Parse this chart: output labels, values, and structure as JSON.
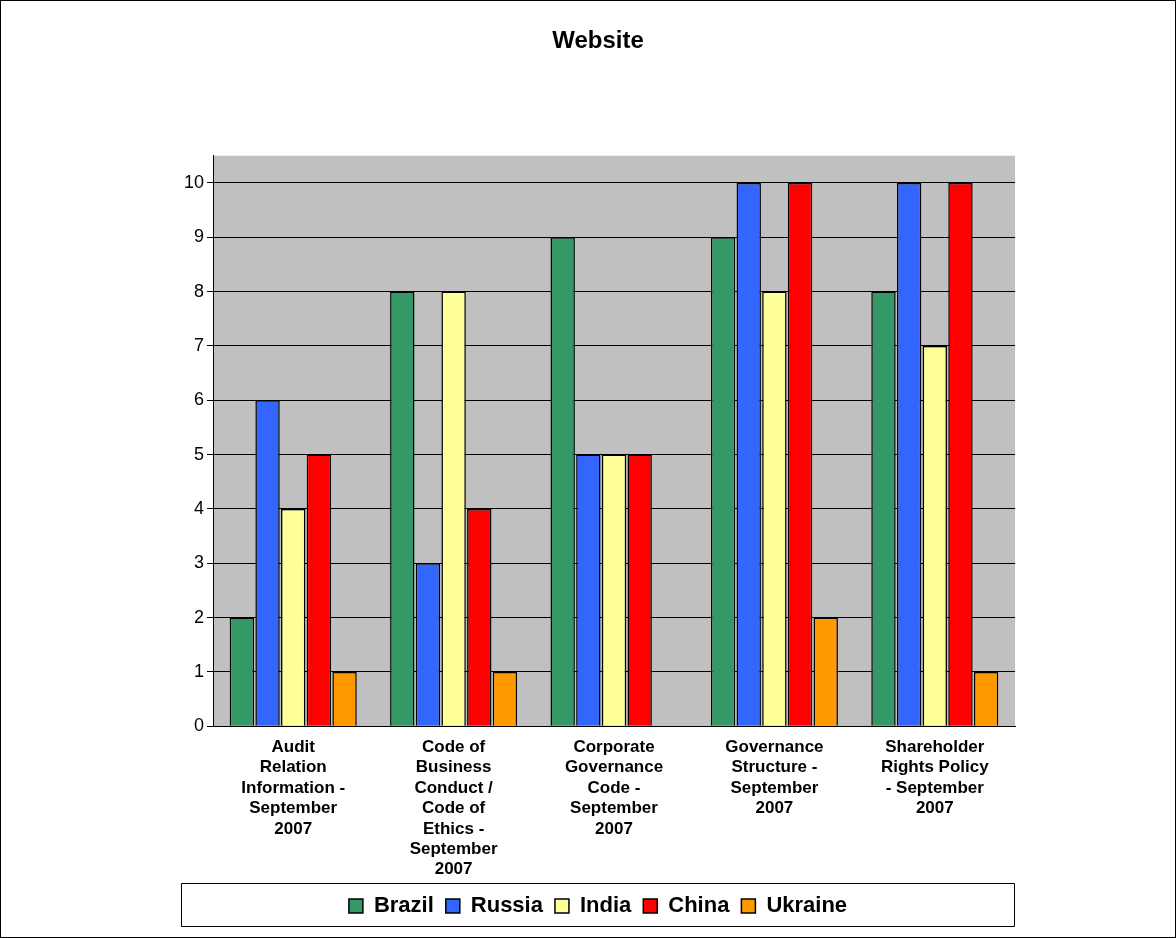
{
  "chart_data": {
    "type": "bar",
    "title": "Website",
    "categories": [
      "Audit Relation Information - September 2007",
      "Code of Business Conduct / Code of Ethics - September 2007",
      "Corporate Governance Code - September 2007",
      "Governance Structure - September 2007",
      "Shareholder Rights Policy - September 2007"
    ],
    "series": [
      {
        "name": "Brazil",
        "color": "#339966",
        "values": [
          2,
          8,
          9,
          9,
          8
        ]
      },
      {
        "name": "Russia",
        "color": "#3366ff",
        "values": [
          6,
          3,
          5,
          10,
          10
        ]
      },
      {
        "name": "India",
        "color": "#ffff99",
        "values": [
          4,
          8,
          5,
          8,
          7
        ]
      },
      {
        "name": "China",
        "color": "#ff0000",
        "values": [
          5,
          4,
          5,
          10,
          10
        ]
      },
      {
        "name": "Ukraine",
        "color": "#ff9900",
        "values": [
          1,
          1,
          0,
          2,
          1
        ]
      }
    ],
    "ylim": [
      0,
      10.5
    ],
    "yticks": [
      0,
      1,
      2,
      3,
      4,
      5,
      6,
      7,
      8,
      9,
      10
    ],
    "grid": "y",
    "legend": "bottom"
  }
}
